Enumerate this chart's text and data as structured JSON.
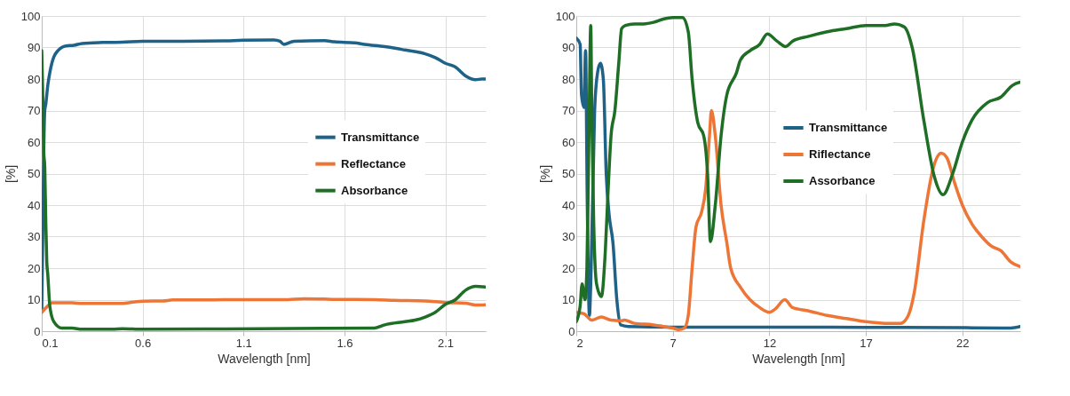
{
  "chart_data": [
    {
      "type": "line",
      "xlabel": "Wavelength [nm]",
      "ylabel": "[%]",
      "xlim": [
        0.1,
        2.3
      ],
      "xticks": [
        0.1,
        0.6,
        1.1,
        1.6,
        2.1
      ],
      "ylim": [
        0,
        100
      ],
      "yticks": [
        0,
        10,
        20,
        30,
        40,
        50,
        60,
        70,
        80,
        90,
        100
      ],
      "grid": true,
      "legend": "right",
      "marker": "none",
      "line_style": "solid",
      "series": [
        {
          "name": "Transmittance",
          "color": "#1f6288",
          "x": [
            0.1,
            0.105,
            0.11,
            0.115,
            0.12,
            0.13,
            0.14,
            0.15,
            0.16,
            0.18,
            0.22,
            0.26,
            0.3,
            0.4,
            0.5,
            0.6,
            0.8,
            1.0,
            1.1,
            1.25,
            1.28,
            1.3,
            1.35,
            1.5,
            1.55,
            1.65,
            1.7,
            1.8,
            1.85,
            1.9,
            2.0,
            2.05,
            2.1,
            2.15,
            2.2,
            2.25,
            2.28,
            2.3
          ],
          "values": [
            6,
            30,
            57,
            70,
            72,
            78,
            82,
            85,
            87,
            89,
            90.5,
            90.7,
            91.3,
            91.6,
            91.7,
            92,
            92,
            92.1,
            92.3,
            92.4,
            92,
            91,
            92,
            92.2,
            91.8,
            91.5,
            91,
            90.3,
            89.8,
            89.2,
            88,
            86.8,
            85,
            83.8,
            81,
            79.8,
            80,
            80
          ]
        },
        {
          "name": "Reflectance",
          "color": "#ed7636",
          "x": [
            0.1,
            0.13,
            0.15,
            0.25,
            0.3,
            0.5,
            0.55,
            0.6,
            0.7,
            0.75,
            0.9,
            1.0,
            1.3,
            1.4,
            1.5,
            1.55,
            1.75,
            1.85,
            2.0,
            2.1,
            2.2,
            2.25,
            2.3
          ],
          "values": [
            6,
            8,
            9,
            9,
            8.8,
            8.8,
            9.2,
            9.5,
            9.6,
            9.9,
            9.9,
            10,
            10,
            10.3,
            10.2,
            10.1,
            10,
            9.8,
            9.6,
            9.1,
            8.9,
            8.3,
            8.4
          ]
        },
        {
          "name": "Absorbance",
          "color": "#1e6e26",
          "x": [
            0.1,
            0.105,
            0.11,
            0.115,
            0.12,
            0.125,
            0.13,
            0.14,
            0.16,
            0.2,
            0.25,
            0.3,
            0.45,
            0.5,
            0.6,
            1.0,
            1.5,
            1.75,
            1.8,
            1.9,
            1.95,
            2.0,
            2.05,
            2.1,
            2.15,
            2.2,
            2.25,
            2.3
          ],
          "values": [
            89,
            75,
            57,
            52,
            35,
            22,
            18,
            8,
            3,
            1,
            1,
            0.6,
            0.6,
            0.8,
            0.6,
            0.7,
            0.9,
            1,
            2,
            3,
            3.5,
            4.5,
            6,
            8.5,
            10,
            13,
            14.2,
            14
          ]
        }
      ]
    },
    {
      "type": "line",
      "xlabel": "Wavelength [nm]",
      "ylabel": "[%]",
      "xlim": [
        2,
        25
      ],
      "xticks": [
        2,
        7,
        12,
        17,
        22
      ],
      "ylim": [
        0,
        100
      ],
      "yticks": [
        0,
        10,
        20,
        30,
        40,
        50,
        60,
        70,
        80,
        90,
        100
      ],
      "grid": true,
      "legend": "top",
      "marker": "none",
      "line_style": "solid",
      "series": [
        {
          "name": "Transmittance",
          "color": "#1f6288",
          "x": [
            2,
            2.2,
            2.27,
            2.4,
            2.48,
            2.57,
            2.68,
            2.75,
            2.95,
            3.1,
            3.25,
            3.4,
            3.55,
            3.7,
            3.9,
            4.1,
            4.3,
            4.7,
            7,
            12,
            17,
            22,
            24.5,
            25
          ],
          "values": [
            93,
            91,
            75,
            71,
            89,
            40,
            5,
            15,
            70,
            82,
            85,
            80,
            50,
            37,
            28,
            10,
            2,
            1.5,
            1.3,
            1.3,
            1.2,
            1.1,
            1.0,
            1.5
          ]
        },
        {
          "name": "Riflectance",
          "color": "#ed7636",
          "x": [
            2,
            2.4,
            2.8,
            3.3,
            3.8,
            4.3,
            4.5,
            5,
            6,
            6.5,
            7,
            7.3,
            7.6,
            7.8,
            8.0,
            8.2,
            8.5,
            8.7,
            8.9,
            9.0,
            9.2,
            9.5,
            9.8,
            10.0,
            10.5,
            11,
            11.5,
            12,
            12.3,
            12.8,
            13.2,
            14,
            15,
            16,
            17,
            18,
            18.8,
            19.2,
            19.5,
            20,
            20.5,
            20.9,
            21.2,
            21.6,
            22,
            22.5,
            23,
            23.5,
            24,
            24.5,
            25
          ],
          "values": [
            6,
            5.5,
            3.5,
            4.5,
            3.5,
            3.3,
            3.5,
            2.5,
            2,
            1.5,
            1,
            0.5,
            1.0,
            5,
            20,
            33,
            38,
            45,
            62,
            70,
            62,
            40,
            28,
            20,
            14,
            10,
            7.5,
            6,
            7,
            10,
            7.5,
            6.5,
            5,
            4,
            3,
            2.5,
            2.5,
            5,
            12,
            35,
            52,
            56.5,
            55,
            47,
            40,
            34,
            30,
            27,
            25.5,
            22,
            20.5
          ]
        },
        {
          "name": "Assorbance",
          "color": "#1e6e26",
          "x": [
            2,
            2.2,
            2.3,
            2.45,
            2.55,
            2.65,
            2.75,
            2.8,
            2.9,
            3.05,
            3.3,
            3.5,
            3.65,
            3.8,
            4.0,
            4.2,
            4.35,
            4.55,
            5.0,
            5.5,
            6.0,
            6.5,
            7.0,
            7.5,
            7.8,
            8.0,
            8.3,
            8.6,
            8.8,
            8.95,
            9.2,
            9.5,
            9.8,
            10.3,
            10.5,
            11,
            11.5,
            11.9,
            12.4,
            12.85,
            13.2,
            14,
            15,
            16,
            17,
            18,
            18.5,
            19,
            19.4,
            20,
            20.55,
            21,
            21.5,
            22,
            22.5,
            23.3,
            24,
            24.6,
            25
          ],
          "values": [
            3,
            8,
            15,
            10,
            20,
            60,
            97,
            70,
            35,
            15,
            11,
            25,
            45,
            62,
            70,
            85,
            96,
            97,
            97.5,
            97.5,
            98,
            99,
            99.5,
            99.5,
            95,
            80,
            66,
            62,
            50,
            28.4,
            40,
            62,
            75,
            82,
            86,
            89,
            91,
            94.3,
            92,
            90.3,
            92,
            93.5,
            95,
            96,
            97,
            97,
            97.5,
            96.5,
            90,
            67,
            49,
            43.3,
            50,
            60,
            67,
            72.5,
            74.3,
            78,
            79
          ]
        }
      ]
    }
  ]
}
